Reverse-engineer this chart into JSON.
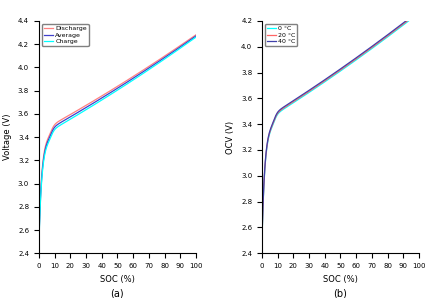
{
  "title_a": "(a)",
  "title_b": "(b)",
  "xlabel": "SOC (%)",
  "ylabel_a": "Voltage (V)",
  "ylabel_b": "OCV (V)",
  "ylim_a": [
    2.4,
    4.4
  ],
  "ylim_b": [
    2.4,
    4.2
  ],
  "xlim_a": [
    0,
    100
  ],
  "xlim_b": [
    0,
    100
  ],
  "yticks_a": [
    2.4,
    2.6,
    2.8,
    3.0,
    3.2,
    3.4,
    3.6,
    3.8,
    4.0,
    4.2,
    4.4
  ],
  "yticks_b": [
    2.4,
    2.6,
    2.8,
    3.0,
    3.2,
    3.4,
    3.6,
    3.8,
    4.0,
    4.2
  ],
  "xticks": [
    0,
    10,
    20,
    30,
    40,
    50,
    60,
    70,
    80,
    90,
    100
  ],
  "legend_a": [
    "Discharge",
    "Average",
    "Charge"
  ],
  "legend_b": [
    "0 °C",
    "20 °C",
    "40 °C"
  ],
  "color_discharge": "#FF8080",
  "color_average": "#4040CC",
  "color_charge": "#00FFFF",
  "color_0c": "#00FFFF",
  "color_20c": "#FF6666",
  "color_40c": "#4040AA",
  "background": "#FFFFFF"
}
